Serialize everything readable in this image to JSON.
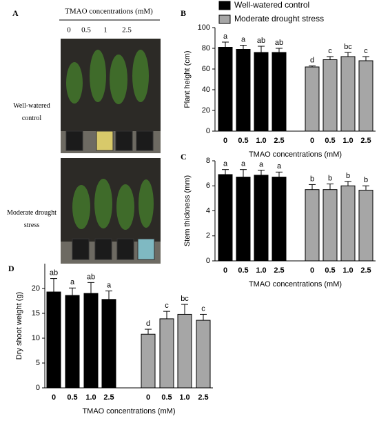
{
  "panel_a": {
    "label": "A",
    "title": "TMAO concentrations (mM)",
    "concentrations": [
      "0",
      "0.5",
      "1",
      "2.5"
    ],
    "rows": [
      "Well-watered control",
      "Moderate drought stress"
    ]
  },
  "chart_data": [
    {
      "type": "bar",
      "label": "B",
      "y_label": "Plant height (cm)",
      "x_label": "TMAO concentrations (mM)",
      "categories": [
        "0",
        "0.5",
        "1.0",
        "2.5"
      ],
      "ylim": [
        0,
        100
      ],
      "yticks": [
        0,
        20,
        40,
        60,
        80,
        100
      ],
      "legend": "top",
      "series": [
        {
          "name": "Well-watered control",
          "color": "#000000",
          "values": [
            81,
            79,
            76,
            76
          ],
          "errors": [
            5,
            4,
            6,
            4
          ],
          "letters": [
            "a",
            "a",
            "ab",
            "ab"
          ]
        },
        {
          "name": "Moderate drought stress",
          "color": "#a6a6a6",
          "values": [
            62,
            69,
            72,
            68
          ],
          "errors": [
            1,
            3,
            4,
            4
          ],
          "letters": [
            "d",
            "c",
            "bc",
            "c"
          ]
        }
      ]
    },
    {
      "type": "bar",
      "label": "C",
      "y_label": "Stem thickness (mm)",
      "x_label": "TMAO concentrations (mM)",
      "categories": [
        "0",
        "0.5",
        "1.0",
        "2.5"
      ],
      "ylim": [
        0,
        8
      ],
      "yticks": [
        0,
        2,
        4,
        6,
        8
      ],
      "series": [
        {
          "color": "#000000",
          "values": [
            6.9,
            6.7,
            6.85,
            6.7
          ],
          "errors": [
            0.4,
            0.6,
            0.4,
            0.4
          ],
          "letters": [
            "a",
            "a",
            "a",
            "a"
          ]
        },
        {
          "color": "#a6a6a6",
          "values": [
            5.7,
            5.7,
            6.0,
            5.65
          ],
          "errors": [
            0.4,
            0.45,
            0.35,
            0.35
          ],
          "letters": [
            "b",
            "b",
            "b",
            "b"
          ]
        }
      ]
    },
    {
      "type": "bar",
      "label": "D",
      "y_label": "Dry shoot weight (g)",
      "x_label": "TMAO concentrations (mM)",
      "categories": [
        "0",
        "0.5",
        "1.0",
        "2.5"
      ],
      "ylim": [
        0,
        25
      ],
      "yticks": [
        0,
        5,
        10,
        15,
        20
      ],
      "series": [
        {
          "color": "#000000",
          "values": [
            19.3,
            18.6,
            19.0,
            17.8
          ],
          "errors": [
            2.7,
            1.5,
            2.2,
            1.7
          ],
          "letters": [
            "ab",
            "a",
            "ab",
            "a"
          ]
        },
        {
          "color": "#a6a6a6",
          "values": [
            10.8,
            13.9,
            14.8,
            13.6
          ],
          "errors": [
            1.0,
            1.5,
            2.0,
            1.2
          ],
          "letters": [
            "d",
            "c",
            "bc",
            "c"
          ]
        }
      ]
    }
  ]
}
